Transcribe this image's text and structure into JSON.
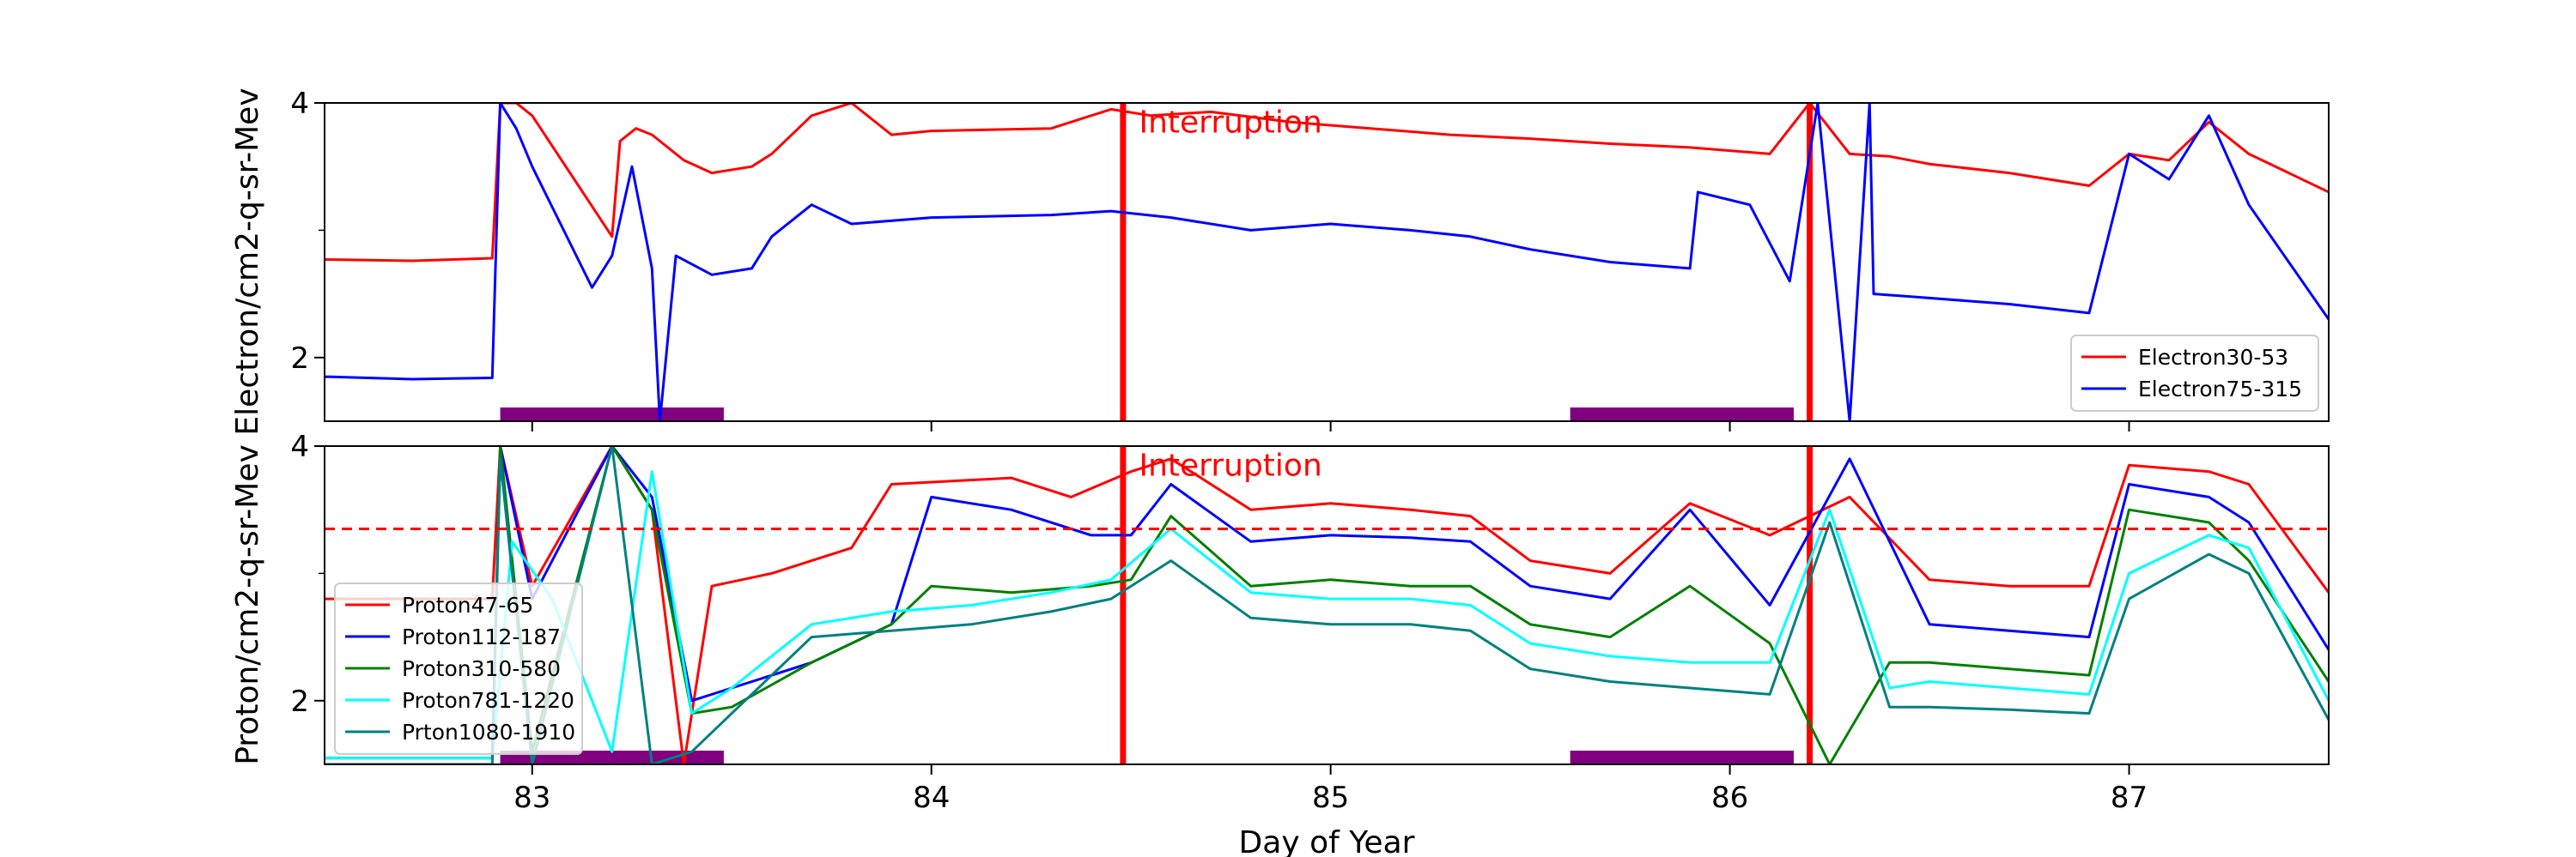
{
  "colors": {
    "electron30": "#ff0000",
    "electron75": "#0000ff",
    "proton47": "#ff0000",
    "proton112": "#0000ff",
    "proton310": "#008000",
    "proton781": "#00ffff",
    "proton1080": "#008080",
    "interruption": "#ff0000",
    "bar": "#800080"
  },
  "chart_data": [
    {
      "type": "line",
      "panel": "top",
      "ylabel": "Electron/cm2-q-sr-Mev",
      "xlabel": "",
      "xlim": [
        82.48,
        87.5
      ],
      "ylim": [
        1.5,
        4
      ],
      "yticks": [
        2,
        4
      ],
      "xticks": [
        83,
        84,
        85,
        86,
        87
      ],
      "show_xtick_labels": false,
      "annotation": {
        "text": "Interruption",
        "x": 84.52,
        "y": 3.85
      },
      "interruption_lines": [
        84.48,
        86.2
      ],
      "shaded_bars": [
        [
          82.92,
          83.48
        ],
        [
          85.6,
          86.16
        ]
      ],
      "legend_position": "lower right",
      "series": [
        {
          "name": "Electron30-53",
          "color_key": "electron30",
          "x": [
            82.48,
            82.7,
            82.9,
            82.92,
            82.96,
            83.0,
            83.2,
            83.22,
            83.26,
            83.3,
            83.38,
            83.45,
            83.55,
            83.6,
            83.7,
            83.8,
            83.9,
            84.0,
            84.3,
            84.45,
            84.55,
            84.7,
            84.9,
            85.1,
            85.3,
            85.5,
            85.7,
            85.9,
            86.1,
            86.2,
            86.3,
            86.4,
            86.5,
            86.7,
            86.9,
            87.0,
            87.1,
            87.2,
            87.3,
            87.5
          ],
          "y": [
            2.77,
            2.76,
            2.78,
            4.0,
            4.0,
            3.9,
            2.95,
            3.7,
            3.8,
            3.75,
            3.55,
            3.45,
            3.5,
            3.6,
            3.9,
            4.0,
            3.75,
            3.78,
            3.8,
            3.95,
            3.9,
            3.93,
            3.85,
            3.8,
            3.75,
            3.72,
            3.68,
            3.65,
            3.6,
            4.0,
            3.6,
            3.58,
            3.52,
            3.45,
            3.35,
            3.6,
            3.55,
            3.85,
            3.6,
            3.3
          ]
        },
        {
          "name": "Electron75-315",
          "color_key": "electron75",
          "x": [
            82.48,
            82.7,
            82.9,
            82.92,
            82.96,
            83.0,
            83.15,
            83.2,
            83.25,
            83.3,
            83.32,
            83.36,
            83.45,
            83.55,
            83.6,
            83.7,
            83.8,
            84.0,
            84.3,
            84.45,
            84.6,
            84.8,
            85.0,
            85.2,
            85.35,
            85.5,
            85.7,
            85.9,
            85.92,
            86.05,
            86.15,
            86.22,
            86.3,
            86.35,
            86.36,
            86.45,
            86.7,
            86.9,
            87.0,
            87.1,
            87.2,
            87.3,
            87.5
          ],
          "y": [
            1.85,
            1.83,
            1.84,
            4.0,
            3.8,
            3.5,
            2.55,
            2.8,
            3.5,
            2.7,
            1.5,
            2.8,
            2.65,
            2.7,
            2.95,
            3.2,
            3.05,
            3.1,
            3.12,
            3.15,
            3.1,
            3.0,
            3.05,
            3.0,
            2.95,
            2.85,
            2.75,
            2.7,
            3.3,
            3.2,
            2.6,
            4.0,
            1.5,
            4.0,
            2.5,
            2.48,
            2.42,
            2.35,
            3.6,
            3.4,
            3.9,
            3.2,
            2.3
          ]
        }
      ]
    },
    {
      "type": "line",
      "panel": "bottom",
      "ylabel": "Proton/cm2-q-sr-Mev",
      "xlabel": "Day of Year",
      "xlim": [
        82.48,
        87.5
      ],
      "ylim": [
        1.5,
        4
      ],
      "yticks": [
        2,
        4
      ],
      "xticks": [
        83,
        84,
        85,
        86,
        87
      ],
      "xtick_labels": [
        "83",
        "84",
        "85",
        "86",
        "87"
      ],
      "annotation": {
        "text": "Interruption",
        "x": 84.52,
        "y": 3.85
      },
      "reference_line": 3.35,
      "interruption_lines": [
        84.48,
        86.2
      ],
      "shaded_bars": [
        [
          82.92,
          83.48
        ],
        [
          85.6,
          86.16
        ]
      ],
      "legend_position": "lower left",
      "series": [
        {
          "name": "Proton47-65",
          "color_key": "proton47",
          "x": [
            82.48,
            82.9,
            82.92,
            83.0,
            83.2,
            83.3,
            83.38,
            83.45,
            83.6,
            83.8,
            83.9,
            84.2,
            84.35,
            84.5,
            84.6,
            84.8,
            85.0,
            85.2,
            85.35,
            85.5,
            85.7,
            85.9,
            86.1,
            86.3,
            86.5,
            86.7,
            86.9,
            87.0,
            87.2,
            87.3,
            87.5
          ],
          "y": [
            2.8,
            2.8,
            4.0,
            2.9,
            4.0,
            3.5,
            1.5,
            2.9,
            3.0,
            3.2,
            3.7,
            3.75,
            3.6,
            3.8,
            3.9,
            3.5,
            3.55,
            3.5,
            3.45,
            3.1,
            3.0,
            3.55,
            3.3,
            3.6,
            2.95,
            2.9,
            2.9,
            3.85,
            3.8,
            3.7,
            2.85
          ]
        },
        {
          "name": "Proton112-187",
          "color_key": "proton112",
          "x": [
            82.48,
            82.9,
            82.92,
            83.0,
            83.2,
            83.3,
            83.4,
            83.5,
            83.7,
            83.9,
            84.0,
            84.2,
            84.4,
            84.5,
            84.6,
            84.8,
            85.0,
            85.2,
            85.35,
            85.5,
            85.7,
            85.9,
            86.1,
            86.3,
            86.5,
            86.7,
            86.9,
            87.0,
            87.2,
            87.3,
            87.5
          ],
          "y": [
            1.55,
            1.55,
            4.0,
            2.8,
            4.0,
            3.6,
            2.0,
            2.1,
            2.3,
            2.6,
            3.6,
            3.5,
            3.3,
            3.3,
            3.7,
            3.25,
            3.3,
            3.28,
            3.25,
            2.9,
            2.8,
            3.5,
            2.75,
            3.9,
            2.6,
            2.55,
            2.5,
            3.7,
            3.6,
            3.4,
            2.4
          ]
        },
        {
          "name": "Proton310-580",
          "color_key": "proton310",
          "x": [
            82.48,
            82.9,
            82.92,
            83.0,
            83.2,
            83.3,
            83.4,
            83.5,
            83.7,
            83.9,
            84.0,
            84.2,
            84.4,
            84.5,
            84.6,
            84.8,
            85.0,
            85.2,
            85.35,
            85.5,
            85.7,
            85.9,
            86.1,
            86.25,
            86.4,
            86.5,
            86.7,
            86.9,
            87.0,
            87.2,
            87.3,
            87.5
          ],
          "y": [
            1.55,
            1.55,
            4.0,
            1.6,
            4.0,
            3.5,
            1.9,
            1.95,
            2.3,
            2.6,
            2.9,
            2.85,
            2.9,
            2.95,
            3.45,
            2.9,
            2.95,
            2.9,
            2.9,
            2.6,
            2.5,
            2.9,
            2.45,
            1.5,
            2.3,
            2.3,
            2.25,
            2.2,
            3.5,
            3.4,
            3.1,
            2.15
          ]
        },
        {
          "name": "Proton781-1220",
          "color_key": "proton781",
          "x": [
            82.48,
            82.9,
            82.95,
            83.05,
            83.2,
            83.3,
            83.4,
            83.5,
            83.7,
            83.9,
            84.1,
            84.3,
            84.45,
            84.6,
            84.8,
            85.0,
            85.2,
            85.35,
            85.5,
            85.7,
            85.9,
            86.1,
            86.25,
            86.4,
            86.5,
            86.7,
            86.9,
            87.0,
            87.2,
            87.3,
            87.5
          ],
          "y": [
            1.55,
            1.55,
            3.25,
            2.8,
            1.6,
            3.8,
            1.9,
            2.1,
            2.6,
            2.7,
            2.75,
            2.85,
            2.95,
            3.35,
            2.85,
            2.8,
            2.8,
            2.75,
            2.45,
            2.35,
            2.3,
            2.3,
            3.5,
            2.1,
            2.15,
            2.1,
            2.05,
            3.0,
            3.3,
            3.2,
            2.0
          ]
        },
        {
          "name": "Prton1080-1910",
          "color_key": "proton1080",
          "x": [
            82.48,
            82.9,
            82.92,
            83.0,
            83.2,
            83.3,
            83.4,
            83.5,
            83.7,
            83.9,
            84.1,
            84.3,
            84.45,
            84.6,
            84.8,
            85.0,
            85.2,
            85.35,
            85.5,
            85.7,
            85.9,
            86.1,
            86.25,
            86.4,
            86.5,
            86.7,
            86.9,
            87.0,
            87.2,
            87.3,
            87.5
          ],
          "y": [
            1.5,
            1.5,
            3.9,
            1.5,
            4.0,
            1.5,
            1.6,
            1.9,
            2.5,
            2.55,
            2.6,
            2.7,
            2.8,
            3.1,
            2.65,
            2.6,
            2.6,
            2.55,
            2.25,
            2.15,
            2.1,
            2.05,
            3.4,
            1.95,
            1.95,
            1.93,
            1.9,
            2.8,
            3.15,
            3.0,
            1.85
          ]
        }
      ]
    }
  ]
}
